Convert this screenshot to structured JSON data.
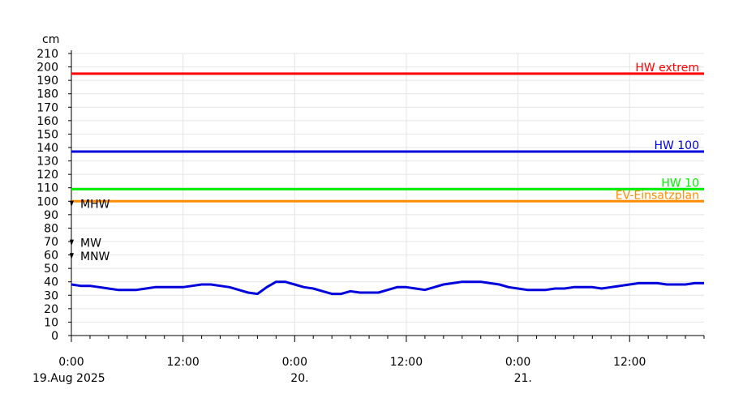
{
  "chart_data": {
    "type": "line",
    "y_unit_label": "cm",
    "ylim": [
      0,
      210
    ],
    "y_ticks": [
      0,
      10,
      20,
      30,
      40,
      50,
      60,
      70,
      80,
      90,
      100,
      110,
      120,
      130,
      140,
      150,
      160,
      170,
      180,
      190,
      200,
      210
    ],
    "x_range_hours": [
      0,
      68
    ],
    "x_ticks": [
      {
        "hour": 0,
        "time": "0:00",
        "date": "19.Aug 2025"
      },
      {
        "hour": 12,
        "time": "12:00",
        "date": ""
      },
      {
        "hour": 24,
        "time": "0:00",
        "date": "20."
      },
      {
        "hour": 36,
        "time": "12:00",
        "date": ""
      },
      {
        "hour": 48,
        "time": "0:00",
        "date": "21."
      },
      {
        "hour": 60,
        "time": "12:00",
        "date": ""
      }
    ],
    "grid": true,
    "thresholds": [
      {
        "name": "HW extrem",
        "value": 195,
        "color": "#ff0000"
      },
      {
        "name": "HW 100",
        "value": 137,
        "color": "#0000dd"
      },
      {
        "name": "HW 10",
        "value": 109,
        "color": "#00ee00"
      },
      {
        "name": "EV-Einsatzplan",
        "value": 100,
        "color": "#ff8c00"
      }
    ],
    "markers": [
      {
        "name": "MHW",
        "value": 98
      },
      {
        "name": "MW",
        "value": 69
      },
      {
        "name": "MNW",
        "value": 59
      }
    ],
    "series": [
      {
        "color": "#0000dd",
        "x": [
          0,
          1,
          2,
          3,
          4,
          5,
          6,
          7,
          8,
          9,
          10,
          11,
          12,
          13,
          14,
          15,
          16,
          17,
          18,
          19,
          20,
          21,
          22,
          23,
          23.5,
          24,
          24.5,
          25,
          26,
          27,
          28,
          29,
          30,
          31,
          32,
          33,
          34,
          35,
          36,
          37,
          38,
          39,
          40,
          41,
          42,
          43,
          44,
          45,
          46,
          47,
          48,
          49,
          50,
          51,
          52,
          53,
          54,
          55,
          56,
          57,
          58,
          59,
          60,
          61,
          62,
          63,
          64,
          65,
          66,
          67,
          68
        ],
        "values": [
          38,
          37,
          37,
          36,
          35,
          34,
          34,
          34,
          35,
          36,
          36,
          36,
          36,
          37,
          38,
          38,
          37,
          36,
          34,
          32,
          31,
          36,
          40,
          40,
          39,
          38,
          37,
          36,
          35,
          33,
          31,
          31,
          33,
          32,
          32,
          32,
          34,
          36,
          36,
          35,
          34,
          36,
          38,
          39,
          40,
          40,
          40,
          39,
          38,
          36,
          35,
          34,
          34,
          34,
          35,
          35,
          36,
          36,
          36,
          35,
          36,
          37,
          38,
          39,
          39,
          39,
          38,
          38,
          38,
          39,
          39
        ]
      }
    ]
  }
}
